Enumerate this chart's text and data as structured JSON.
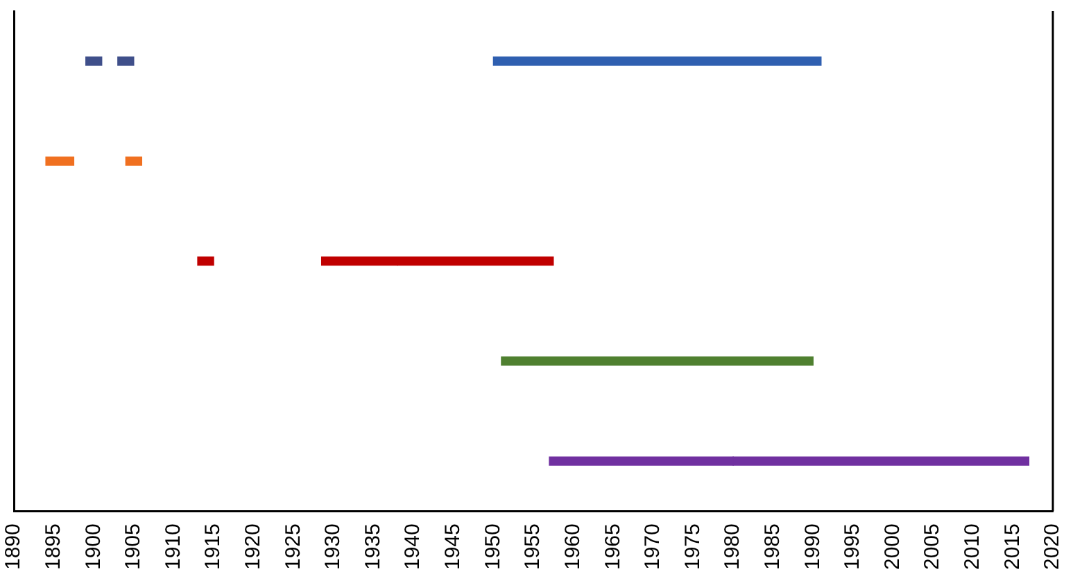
{
  "chart_data": {
    "type": "bar",
    "orientation": "horizontal",
    "categories": [
      null,
      null,
      null,
      null,
      null
    ],
    "series": [
      {
        "colors": [
          "#3f4f8a",
          "#f07020",
          "#c00000",
          "#4f8030",
          "#7030a0"
        ],
        "base": [
          1899,
          1894,
          1913,
          1951,
          1957
        ],
        "values": [
          2,
          3.5,
          2,
          39,
          23
        ]
      },
      {
        "colors": [
          "#3f4f8a",
          "#f07020",
          "#c00000",
          null,
          "#7030a0"
        ],
        "base": [
          1903,
          1904,
          1928.5,
          null,
          1980
        ],
        "values": [
          2,
          2,
          9.5,
          null,
          37
        ]
      },
      {
        "colors": [
          "#2f5fb0",
          null,
          "#c00000",
          null,
          null
        ],
        "base": [
          1950,
          null,
          1938,
          null,
          null
        ],
        "values": [
          41,
          null,
          19.5,
          null,
          null
        ]
      }
    ],
    "xlim": [
      1890,
      2020
    ],
    "xticks": [
      1890,
      1895,
      1900,
      1905,
      1910,
      1915,
      1920,
      1925,
      1930,
      1935,
      1940,
      1945,
      1950,
      1955,
      1960,
      1965,
      1970,
      1975,
      1980,
      1985,
      1990,
      1995,
      2000,
      2005,
      2010,
      2015,
      2020
    ],
    "grid": false,
    "legend": false
  }
}
